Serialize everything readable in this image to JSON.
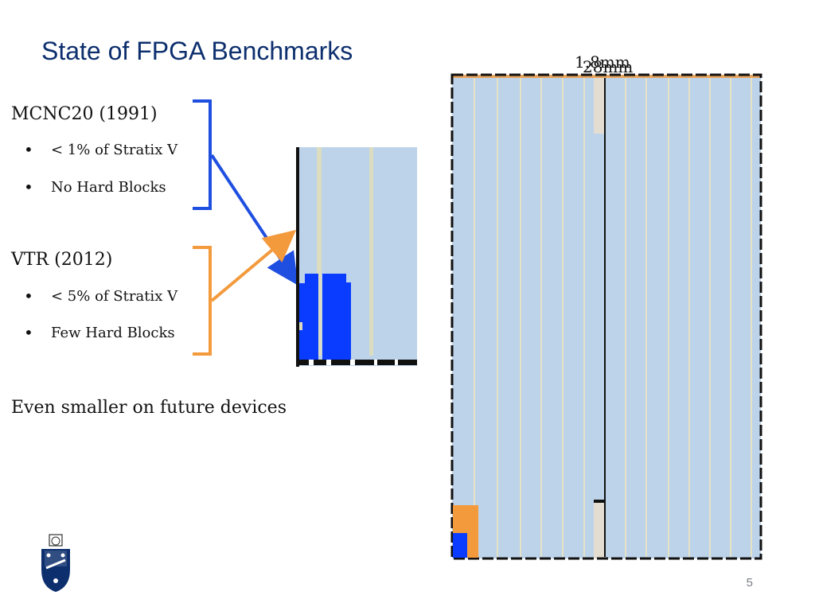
{
  "slide": {
    "title": "State of FPGA Benchmarks",
    "page_number": "5"
  },
  "sections": [
    {
      "heading": "MCNC20 (1991)",
      "bullets": [
        "< 1% of Stratix V",
        "No Hard Blocks"
      ],
      "bracket_color": "#1f4fe0"
    },
    {
      "heading": "VTR (2012)",
      "bullets": [
        "< 5% of Stratix V",
        "Few Hard Blocks"
      ],
      "bracket_color": "#f39a3d"
    }
  ],
  "footer_text": "Even smaller on future devices",
  "chip_labels": [
    "1.8mm",
    "28mm"
  ],
  "colors": {
    "title": "#0d2f6e",
    "fabric": "#bcd3ea",
    "hard_block_column": "#dcdcc0",
    "mcnc_blocks": "#0a3cff",
    "vtr_blocks": "#f39a3d"
  },
  "logo": {
    "icon": "university-crest-icon"
  }
}
